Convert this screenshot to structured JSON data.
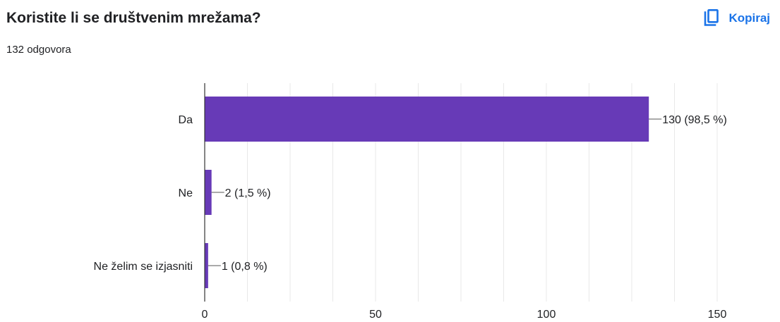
{
  "header": {
    "title": "Koristite li se društvenim mrežama?",
    "subtitle": "132 odgovora",
    "copy_label": "Kopiraj",
    "copy_icon": "copy-icon"
  },
  "colors": {
    "bar": "#673ab7",
    "accent": "#1a73e8",
    "gridline": "#e8e8e8",
    "axis": "#333333",
    "text": "#202124"
  },
  "chart_data": {
    "type": "bar",
    "orientation": "horizontal",
    "title": "",
    "xlabel": "",
    "ylabel": "",
    "categories": [
      "Da",
      "Ne",
      "Ne želim se izjasniti"
    ],
    "values": [
      130,
      2,
      1
    ],
    "data_labels": [
      "130 (98,5 %)",
      "2 (1,5 %)",
      "1 (0,8 %)"
    ],
    "xlim": [
      0,
      150
    ],
    "xticks": [
      0,
      50,
      100,
      150
    ],
    "xtick_labels": [
      "0",
      "50",
      "100",
      "150"
    ],
    "grid": true,
    "legend": "none"
  }
}
